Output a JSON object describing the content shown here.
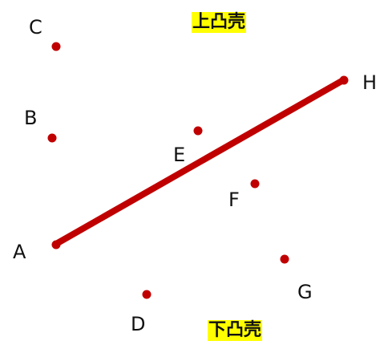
{
  "colors": {
    "point": "#c00000",
    "segment": "#c00000",
    "highlight": "#ffff00"
  },
  "labels": {
    "upper_hull": "上凸壳",
    "lower_hull": "下凸壳"
  },
  "points": [
    {
      "id": "A",
      "label": "A"
    },
    {
      "id": "B",
      "label": "B"
    },
    {
      "id": "C",
      "label": "C"
    },
    {
      "id": "D",
      "label": "D"
    },
    {
      "id": "E",
      "label": "E"
    },
    {
      "id": "F",
      "label": "F"
    },
    {
      "id": "G",
      "label": "G"
    },
    {
      "id": "H",
      "label": "H"
    }
  ],
  "segment": {
    "from": "A",
    "to": "H"
  }
}
